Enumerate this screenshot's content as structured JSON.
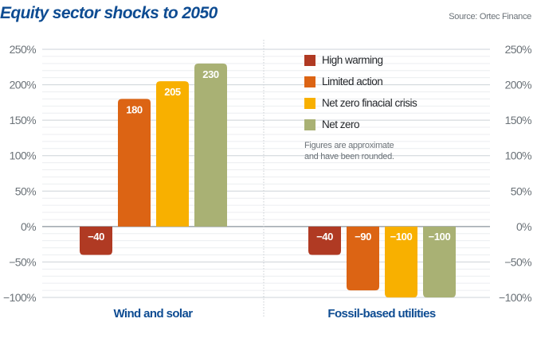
{
  "header": {
    "title": "Equity sector shocks to 2050",
    "source": "Source: Ortec Finance"
  },
  "legend": {
    "items": [
      {
        "label": "High warming",
        "color": "#b03a23"
      },
      {
        "label": "Limited action",
        "color": "#dc6414"
      },
      {
        "label": "Net zero finacial crisis",
        "color": "#f8b000"
      },
      {
        "label": "Net zero",
        "color": "#a9b174"
      }
    ],
    "note_line1": "Figures are approximate",
    "note_line2": "and have been rounded."
  },
  "chart_data": {
    "type": "bar",
    "title": "Equity sector shocks to 2050",
    "categories": [
      "Wind and solar",
      "Fossil-based utilities"
    ],
    "series": [
      {
        "name": "High warming",
        "color": "#b03a23",
        "values": [
          -40,
          -40
        ],
        "labels": [
          "−40",
          "−40"
        ]
      },
      {
        "name": "Limited action",
        "color": "#dc6414",
        "values": [
          180,
          -90
        ],
        "labels": [
          "180",
          "−90"
        ]
      },
      {
        "name": "Net zero finacial crisis",
        "color": "#f8b000",
        "values": [
          205,
          -100
        ],
        "labels": [
          "205",
          "−100"
        ]
      },
      {
        "name": "Net zero",
        "color": "#a9b174",
        "values": [
          230,
          -100
        ],
        "labels": [
          "230",
          "−100"
        ]
      }
    ],
    "ylim": [
      -100,
      250
    ],
    "yticks": [
      250,
      200,
      150,
      100,
      50,
      0,
      -50,
      -100
    ],
    "ytick_labels": [
      "250%",
      "200%",
      "150%",
      "100%",
      "50%",
      "0%",
      "−50%",
      "−100%"
    ],
    "xlabel": "",
    "ylabel": "",
    "grid": true,
    "legend_position": "top-right of center",
    "note": "Figures are approximate and have been rounded."
  }
}
